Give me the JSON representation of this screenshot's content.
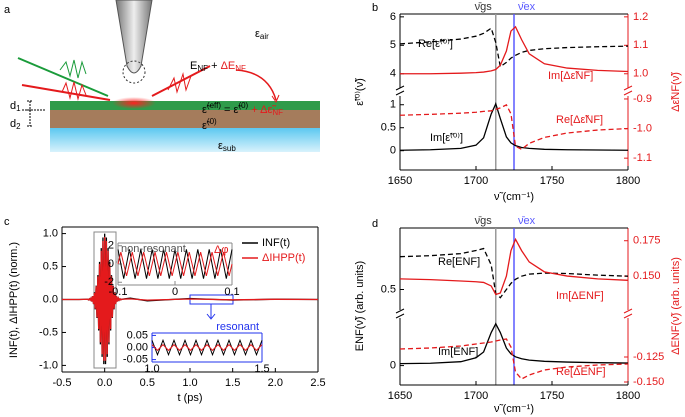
{
  "diagram": {
    "panel": "a",
    "eps_air": [
      "ε",
      "air"
    ],
    "field": [
      "E",
      "NF",
      " + ",
      "ΔE",
      "NF"
    ],
    "d1": [
      "d",
      "1"
    ],
    "d2": [
      "d",
      "2"
    ],
    "eff": [
      "ε̃",
      "(eff)",
      " = ε̃",
      "(0)",
      " + Δε̃",
      "NF"
    ],
    "eps0": [
      "ε̃",
      "(0)"
    ],
    "eps_sub": [
      "ε",
      "sub"
    ]
  },
  "chart_data": [
    {
      "type": "line",
      "panel": "b",
      "ylabel": "ε̃⁽⁰⁾(ν̃)",
      "y2label": "Δε̃NF(ν̃)",
      "x": [
        1650,
        1670,
        1690,
        1700,
        1705,
        1710,
        1713,
        1716,
        1720,
        1723,
        1726,
        1730,
        1735,
        1745,
        1760,
        1780,
        1800
      ],
      "xlim": [
        1650,
        1800
      ],
      "ylim": [
        3.5,
        6.1
      ],
      "yticks": [
        4,
        5,
        6
      ],
      "y2lim": [
        0.95,
        1.21
      ],
      "y2ticks": [
        {
          "value": 1,
          "label": "1.0"
        },
        1.1,
        1.2
      ],
      "markers": [
        {
          "x": 1713,
          "label": "ν̄gs",
          "color": "#999999"
        },
        {
          "x": 1725,
          "label": "ν̄ex",
          "color": "#5a5aff"
        }
      ],
      "series": [
        {
          "name": "Re[ε̃⁽⁰⁾]",
          "color": "#000000",
          "dash": true,
          "values": [
            5.05,
            5.12,
            5.22,
            5.32,
            5.42,
            5.6,
            5.1,
            4.25,
            4.4,
            4.55,
            4.65,
            4.75,
            4.82,
            4.88,
            4.92,
            4.95,
            4.97
          ]
        },
        {
          "name": "Im[Δε̃NF]",
          "color": "#e41a1c",
          "axis": "y2",
          "values": [
            1.0,
            1.0,
            1.002,
            1.004,
            1.006,
            1.01,
            1.015,
            1.03,
            1.08,
            1.15,
            1.165,
            1.12,
            1.07,
            1.035,
            1.02,
            1.012,
            1.008
          ]
        }
      ]
    },
    {
      "type": "line",
      "xlabel": "ν̃ (cm⁻¹)",
      "x": [
        1650,
        1670,
        1690,
        1700,
        1705,
        1710,
        1713,
        1716,
        1720,
        1723,
        1726,
        1730,
        1735,
        1745,
        1760,
        1780,
        1800
      ],
      "xlim": [
        1650,
        1800
      ],
      "xticks": [
        1650,
        1700,
        1750,
        1800
      ],
      "ylim": [
        -0.42,
        1.19
      ],
      "yticks": [
        0,
        0.5,
        1
      ],
      "y2lim": [
        -1.14,
        -0.89
      ],
      "y2ticks": [
        -0.9,
        {
          "value": -1,
          "label": "-1.0"
        },
        -1.1
      ],
      "series": [
        {
          "name": "Im[ε̃⁽⁰⁾]",
          "color": "#000000",
          "values": [
            0.01,
            0.02,
            0.05,
            0.12,
            0.28,
            0.8,
            1.02,
            0.7,
            0.3,
            0.17,
            0.11,
            0.07,
            0.05,
            0.03,
            0.02,
            0.015,
            0.01
          ]
        },
        {
          "name": "Re[Δε̃NF]",
          "color": "#e41a1c",
          "dash": true,
          "axis": "y2",
          "values": [
            -0.955,
            -0.952,
            -0.948,
            -0.945,
            -0.942,
            -0.94,
            -0.935,
            -0.93,
            -0.92,
            -0.95,
            -1.06,
            -1.07,
            -1.05,
            -1.03,
            -1.015,
            -1.005,
            -1.0
          ]
        }
      ]
    },
    {
      "type": "line",
      "panel": "c",
      "ylabel": "INF(t), ΔIHPP(t) (norm.)",
      "xlabel": "t (ps)",
      "legend": "upper right",
      "x": [
        -0.5,
        -0.3,
        -0.2,
        -0.19,
        -0.18,
        -0.17,
        -0.16,
        -0.15,
        -0.14,
        -0.13,
        -0.12,
        -0.11,
        -0.1,
        -0.09,
        -0.08,
        -0.07,
        -0.06,
        -0.05,
        -0.04,
        -0.03,
        -0.02,
        -0.01,
        0,
        0.01,
        0.02,
        0.03,
        0.04,
        0.05,
        0.06,
        0.07,
        0.08,
        0.09,
        0.1,
        0.11,
        0.12,
        0.13,
        0.14,
        0.15,
        0.16,
        0.17,
        0.18,
        0.19,
        0.2,
        0.3,
        0.5,
        1,
        1.5,
        2,
        2.5
      ],
      "xlim": [
        -0.5,
        2.5
      ],
      "xticks": [
        -0.5,
        {
          "value": 0,
          "label": "0.0"
        },
        0.5,
        {
          "value": 1,
          "label": "1.0"
        },
        1.5,
        {
          "value": 2,
          "label": "2.0"
        },
        2.5
      ],
      "ylim": [
        -1.1,
        1.1
      ],
      "yticks": [
        {
          "value": -1,
          "label": "-1.0"
        },
        -0.5,
        {
          "value": 0,
          "label": "0.0"
        },
        0.5,
        {
          "value": 1,
          "label": "1.0"
        }
      ],
      "series": [
        {
          "name": "INF(t)",
          "color": "#000000",
          "values": [
            0,
            0,
            0.004,
            -0.005,
            0.01,
            -0.01,
            0.02,
            -0.03,
            0.05,
            -0.07,
            0.11,
            -0.15,
            0.21,
            -0.28,
            0.37,
            -0.47,
            0.57,
            -0.68,
            0.78,
            -0.87,
            0.94,
            -0.98,
            1,
            -0.98,
            0.94,
            -0.87,
            0.78,
            -0.68,
            0.57,
            -0.47,
            0.37,
            -0.28,
            0.21,
            -0.15,
            0.11,
            -0.07,
            0.05,
            -0.03,
            0.02,
            -0.01,
            0.01,
            -0.005,
            0.004,
            0.02,
            -0.02,
            0.015,
            -0.01,
            0.005,
            0
          ]
        },
        {
          "name": "ΔIHPP(t)",
          "color": "#e41a1c",
          "values": [
            0,
            0,
            0.004,
            -0.005,
            0.01,
            -0.01,
            0.02,
            -0.03,
            0.05,
            -0.07,
            0.1,
            -0.14,
            0.2,
            -0.27,
            0.35,
            -0.45,
            0.54,
            -0.65,
            0.74,
            -0.83,
            0.89,
            -0.93,
            0.95,
            -0.93,
            0.89,
            -0.83,
            0.74,
            -0.65,
            0.54,
            -0.45,
            0.35,
            -0.27,
            0.2,
            -0.14,
            0.1,
            -0.07,
            0.05,
            -0.03,
            0.02,
            -0.01,
            0.01,
            -0.005,
            0.004,
            0.01,
            -0.01,
            0.008,
            -0.005,
            0.003,
            0
          ]
        }
      ]
    },
    {
      "type": "line",
      "title": "non-resonant",
      "annotation": "Δφ",
      "frame_color": "#888888",
      "x": [
        -0.1,
        -0.095,
        -0.09,
        -0.085,
        -0.08,
        -0.075,
        -0.07,
        -0.065,
        -0.06,
        -0.055,
        -0.05,
        -0.045,
        -0.04,
        -0.035,
        -0.03,
        -0.025,
        -0.02,
        -0.015,
        -0.01,
        -0.005,
        0,
        0.005,
        0.01,
        0.015,
        0.02,
        0.025,
        0.03,
        0.035,
        0.04,
        0.045,
        0.05,
        0.055,
        0.06,
        0.065,
        0.07,
        0.075,
        0.08,
        0.085,
        0.09,
        0.095,
        0.1
      ],
      "xlim": [
        -0.1,
        0.1
      ],
      "xticks": [
        -0.1,
        0,
        0.1
      ],
      "ylim": [
        -2.3,
        2.3
      ],
      "yticks": [
        -2,
        0,
        2
      ],
      "series": [
        {
          "color": "#000000",
          "values": [
            1.6,
            0,
            -1.6,
            0,
            1.6,
            0,
            -1.6,
            0,
            1.6,
            0,
            -1.6,
            0,
            1.6,
            0,
            -1.6,
            0,
            1.6,
            0,
            -1.6,
            0,
            1.6,
            0,
            -1.6,
            0,
            1.6,
            0,
            -1.6,
            0,
            1.6,
            0,
            -1.6,
            0,
            1.6,
            0,
            -1.6,
            0,
            1.6,
            0,
            -1.6,
            0,
            1.6
          ]
        },
        {
          "color": "#e41a1c",
          "values": [
            0,
            1.3,
            0,
            -1.3,
            0,
            1.3,
            0,
            -1.3,
            0,
            1.3,
            0,
            -1.3,
            0,
            1.3,
            0,
            -1.3,
            0,
            1.3,
            0,
            -1.3,
            0,
            1.3,
            0,
            -1.3,
            0,
            1.3,
            0,
            -1.3,
            0,
            1.3,
            0,
            -1.3,
            0,
            1.3,
            0,
            -1.3,
            0,
            1.3,
            0,
            -1.3,
            0
          ]
        }
      ]
    },
    {
      "type": "line",
      "title": "resonant",
      "frame_color": "#2233ee",
      "x": [
        1,
        1.0125,
        1.025,
        1.0375,
        1.05,
        1.0625,
        1.075,
        1.0875,
        1.1,
        1.1125,
        1.125,
        1.1375,
        1.15,
        1.1625,
        1.175,
        1.1875,
        1.2,
        1.2125,
        1.225,
        1.2375,
        1.25,
        1.2625,
        1.275,
        1.2875,
        1.3,
        1.3125,
        1.325,
        1.3375,
        1.35,
        1.3625,
        1.375,
        1.3875,
        1.4,
        1.4125,
        1.425,
        1.4375,
        1.45,
        1.4625,
        1.475,
        1.4875,
        1.5
      ],
      "xlim": [
        1,
        1.5
      ],
      "xticks": [
        {
          "value": 1,
          "label": "1.0"
        },
        1.5
      ],
      "ylim": [
        -0.06,
        0.06
      ],
      "yticks": [
        -0.05,
        {
          "value": 0,
          "label": "0.00"
        },
        0.05
      ],
      "series": [
        {
          "color": "#000000",
          "values": [
            0.03,
            0,
            -0.03,
            0,
            0.03,
            0,
            -0.03,
            0,
            0.03,
            0,
            -0.03,
            0,
            0.03,
            0,
            -0.03,
            0,
            0.03,
            0,
            -0.03,
            0,
            0.03,
            0,
            -0.03,
            0,
            0.03,
            0,
            -0.03,
            0,
            0.03,
            0,
            -0.03,
            0,
            0.03,
            0,
            -0.03,
            0,
            0.03,
            0,
            -0.03,
            0,
            0.03
          ]
        },
        {
          "color": "#e41a1c",
          "values": [
            0.012,
            0,
            -0.012,
            0,
            0.012,
            0,
            -0.012,
            0,
            0.012,
            0,
            -0.012,
            0,
            0.012,
            0,
            -0.012,
            0,
            0.012,
            0,
            -0.012,
            0,
            0.012,
            0,
            -0.012,
            0,
            0.012,
            0,
            -0.012,
            0,
            0.012,
            0,
            -0.012,
            0,
            0.012,
            0,
            -0.012,
            0,
            0.012,
            0,
            -0.012,
            0,
            0.012
          ]
        }
      ]
    },
    {
      "type": "line",
      "panel": "d",
      "ylabel": "ENF(ν̃) (arb. units)",
      "y2label": "ΔENF(ν̃) (arb. units)",
      "x": [
        1650,
        1670,
        1690,
        1700,
        1705,
        1710,
        1713,
        1716,
        1720,
        1723,
        1726,
        1730,
        1735,
        1745,
        1760,
        1780,
        1800
      ],
      "xlim": [
        1650,
        1800
      ],
      "ylim": [
        0.4,
        0.8
      ],
      "yticks": [
        0.5
      ],
      "y2lim": [
        0.126,
        0.184
      ],
      "y2ticks": [
        {
          "value": 0.15,
          "label": "0.150"
        },
        0.175
      ],
      "markers": [
        {
          "x": 1713,
          "label": "ν̄gs",
          "color": "#999999"
        },
        {
          "x": 1725,
          "label": "ν̄ex",
          "color": "#5a5aff"
        }
      ],
      "series": [
        {
          "name": "Re[ENF]",
          "color": "#000000",
          "dash": true,
          "values": [
            0.66,
            0.665,
            0.675,
            0.69,
            0.7,
            0.62,
            0.48,
            0.46,
            0.5,
            0.53,
            0.55,
            0.565,
            0.575,
            0.58,
            0.578,
            0.57,
            0.565
          ]
        },
        {
          "name": "Im[ΔENF]",
          "color": "#e41a1c",
          "axis": "y2",
          "values": [
            0.148,
            0.1475,
            0.1465,
            0.146,
            0.1455,
            0.143,
            0.137,
            0.138,
            0.15,
            0.168,
            0.176,
            0.168,
            0.16,
            0.153,
            0.15,
            0.148,
            0.147
          ]
        }
      ]
    },
    {
      "type": "line",
      "xlabel": "ν̃ (cm⁻¹)",
      "x": [
        1650,
        1670,
        1690,
        1700,
        1705,
        1710,
        1713,
        1716,
        1720,
        1723,
        1726,
        1730,
        1735,
        1745,
        1760,
        1780,
        1800
      ],
      "xlim": [
        1650,
        1800
      ],
      "xticks": [
        1650,
        1700,
        1750,
        1800
      ],
      "ylim": [
        -0.1,
        0.245
      ],
      "yticks": [
        0
      ],
      "y2lim": [
        -0.153,
        -0.086
      ],
      "y2ticks": [
        {
          "value": -0.15,
          "label": "-0.150"
        },
        -0.125
      ],
      "series": [
        {
          "name": "Im[ENF]",
          "color": "#000000",
          "values": [
            0.01,
            0.012,
            0.02,
            0.04,
            0.07,
            0.17,
            0.215,
            0.17,
            0.09,
            0.06,
            0.045,
            0.035,
            0.028,
            0.022,
            0.018,
            0.015,
            0.013
          ]
        },
        {
          "name": "Re[ΔENF]",
          "color": "#e41a1c",
          "dash": true,
          "axis": "y2",
          "values": [
            -0.117,
            -0.116,
            -0.114,
            -0.112,
            -0.111,
            -0.11,
            -0.109,
            -0.108,
            -0.107,
            -0.115,
            -0.14,
            -0.147,
            -0.143,
            -0.138,
            -0.135,
            -0.133,
            -0.132
          ]
        }
      ]
    }
  ]
}
